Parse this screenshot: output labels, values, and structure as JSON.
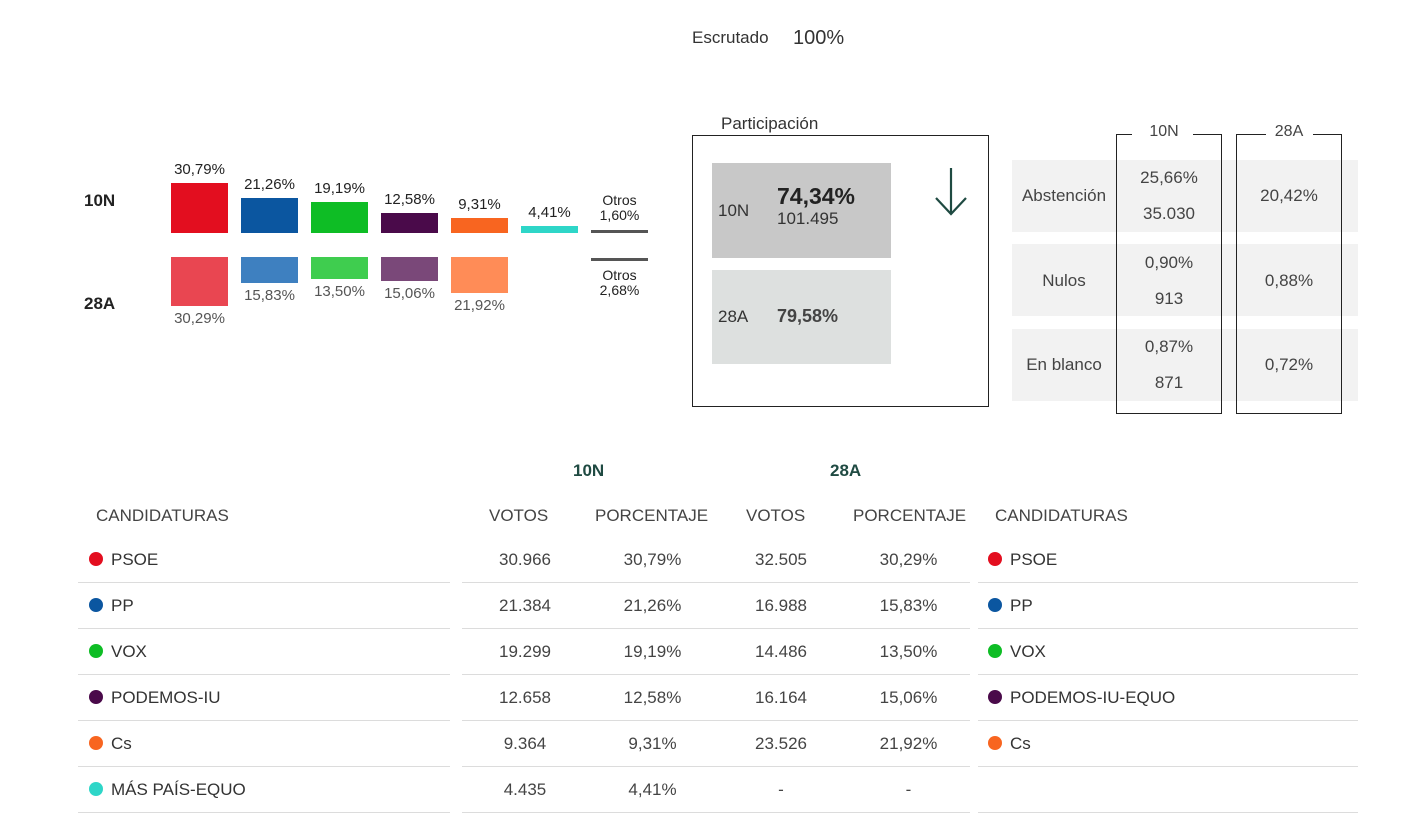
{
  "escrutado": {
    "label": "Escrutado",
    "value": "100%"
  },
  "chart": {
    "row_labels": [
      "10N",
      "28A"
    ],
    "parties": [
      {
        "color_10n": "#e30e1f",
        "color_28a": "#e94651",
        "pct_10n": "30,79%",
        "pct_28a": "30,29%",
        "v10": 30.79,
        "v28": 30.29
      },
      {
        "color_10n": "#0b56a0",
        "color_28a": "#3e80c0",
        "pct_10n": "21,26%",
        "pct_28a": "15,83%",
        "v10": 21.26,
        "v28": 15.83
      },
      {
        "color_10n": "#0ebd25",
        "color_28a": "#3fcd4f",
        "pct_10n": "19,19%",
        "pct_28a": "13,50%",
        "v10": 19.19,
        "v28": 13.5
      },
      {
        "color_10n": "#4a0a4a",
        "color_28a": "#7a4879",
        "pct_10n": "12,58%",
        "pct_28a": "15,06%",
        "v10": 12.58,
        "v28": 15.06
      },
      {
        "color_10n": "#f86520",
        "color_28a": "#ff8c57",
        "pct_10n": "9,31%",
        "pct_28a": "21,92%",
        "v10": 9.31,
        "v28": 21.92
      },
      {
        "color_10n": "#2ed6c8",
        "color_28a": null,
        "pct_10n": "4,41%",
        "pct_28a": "",
        "v10": 4.41,
        "v28": 0
      }
    ],
    "otros_10n": {
      "label": "Otros",
      "value": "1,60%"
    },
    "otros_28a": {
      "label": "Otros",
      "value": "2,68%"
    }
  },
  "participacion": {
    "title": "Participación",
    "r10n": {
      "label": "10N",
      "pct": "74,34%",
      "votes": "101.495"
    },
    "r28a": {
      "label": "28A",
      "pct": "79,58%"
    }
  },
  "stats": {
    "col_10n": "10N",
    "col_28a": "28A",
    "rows": [
      {
        "label": "Abstención",
        "pct_10n": "25,66%",
        "num_10n": "35.030",
        "pct_28a": "20,42%"
      },
      {
        "label": "Nulos",
        "pct_10n": "0,90%",
        "num_10n": "913",
        "pct_28a": "0,88%"
      },
      {
        "label": "En blanco",
        "pct_10n": "0,87%",
        "num_10n": "871",
        "pct_28a": "0,72%"
      }
    ]
  },
  "table": {
    "group_10n": "10N",
    "group_28a": "28A",
    "headers": {
      "cand": "CANDIDATURAS",
      "votos": "VOTOS",
      "porcentaje": "PORCENTAJE"
    },
    "rows": [
      {
        "color": "#e30e1f",
        "name_10n": "PSOE",
        "votos_10n": "30.966",
        "pct_10n": "30,79%",
        "votos_28a": "32.505",
        "pct_28a": "30,29%",
        "name_28a": "PSOE",
        "color_28a": "#e30e1f"
      },
      {
        "color": "#0b56a0",
        "name_10n": "PP",
        "votos_10n": "21.384",
        "pct_10n": "21,26%",
        "votos_28a": "16.988",
        "pct_28a": "15,83%",
        "name_28a": "PP",
        "color_28a": "#0b56a0"
      },
      {
        "color": "#0ebd25",
        "name_10n": "VOX",
        "votos_10n": "19.299",
        "pct_10n": "19,19%",
        "votos_28a": "14.486",
        "pct_28a": "13,50%",
        "name_28a": "VOX",
        "color_28a": "#0ebd25"
      },
      {
        "color": "#4a0a4a",
        "name_10n": "PODEMOS-IU",
        "votos_10n": "12.658",
        "pct_10n": "12,58%",
        "votos_28a": "16.164",
        "pct_28a": "15,06%",
        "name_28a": "PODEMOS-IU-EQUO",
        "color_28a": "#4a0a4a"
      },
      {
        "color": "#f86520",
        "name_10n": "Cs",
        "votos_10n": "9.364",
        "pct_10n": "9,31%",
        "votos_28a": "23.526",
        "pct_28a": "21,92%",
        "name_28a": "Cs",
        "color_28a": "#f86520"
      },
      {
        "color": "#2ed6c8",
        "name_10n": "MÁS PAÍS-EQUO",
        "votos_10n": "4.435",
        "pct_10n": "4,41%",
        "votos_28a": "-",
        "pct_28a": "-",
        "name_28a": "",
        "color_28a": null
      }
    ]
  }
}
